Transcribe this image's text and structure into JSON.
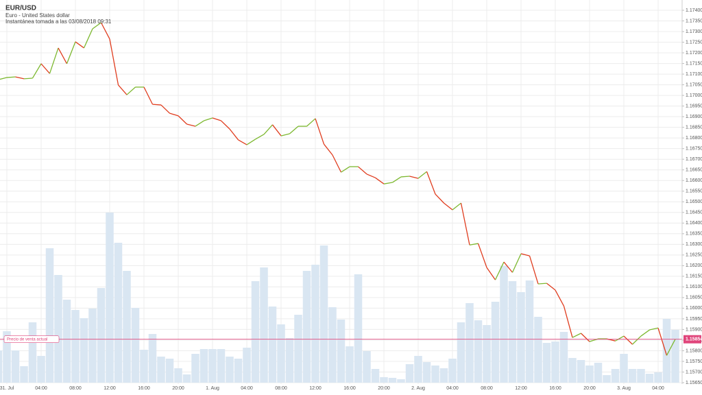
{
  "chart_data": {
    "type": "line",
    "title": "EUR/USD",
    "subtitle": "Euro - United States dollar",
    "snapshot": "Instantánea tomada a las 03/08/2018 09:31",
    "current_price_label": "Precio de venta actual",
    "current_price": 1.15854,
    "current_price_color": "#e0457b",
    "up_color": "#7cb82f",
    "down_color": "#e03c1e",
    "volume_color": "#d9e6f2",
    "grid": true,
    "x": [
      -1,
      0,
      1,
      2,
      3,
      4,
      5,
      6,
      7,
      8,
      9,
      10,
      11,
      12,
      13,
      14,
      15,
      16,
      17,
      18,
      19,
      20,
      21,
      22,
      23,
      24,
      25,
      26,
      27,
      28,
      29,
      30,
      31,
      32,
      33,
      34,
      35,
      36,
      37,
      38,
      39,
      40,
      41,
      42,
      43,
      44,
      45,
      46,
      47,
      48,
      49,
      50,
      51,
      52,
      53,
      54,
      55,
      56,
      57,
      58,
      59,
      60,
      61,
      62,
      63,
      64,
      65,
      66,
      67,
      68,
      69,
      70,
      71,
      72,
      73,
      74,
      75,
      76,
      77,
      78
    ],
    "xlim": [
      -0.8,
      78.8
    ],
    "xticks": [
      {
        "value": 0,
        "label": "31. Jul"
      },
      {
        "value": 4,
        "label": "04:00"
      },
      {
        "value": 8,
        "label": "08:00"
      },
      {
        "value": 12,
        "label": "12:00"
      },
      {
        "value": 16,
        "label": "16:00"
      },
      {
        "value": 20,
        "label": "20:00"
      },
      {
        "value": 24,
        "label": "1. Aug"
      },
      {
        "value": 28,
        "label": "04:00"
      },
      {
        "value": 32,
        "label": "08:00"
      },
      {
        "value": 36,
        "label": "12:00"
      },
      {
        "value": 40,
        "label": "16:00"
      },
      {
        "value": 44,
        "label": "20:00"
      },
      {
        "value": 48,
        "label": "2. Aug"
      },
      {
        "value": 52,
        "label": "04:00"
      },
      {
        "value": 56,
        "label": "08:00"
      },
      {
        "value": 60,
        "label": "12:00"
      },
      {
        "value": 64,
        "label": "16:00"
      },
      {
        "value": 68,
        "label": "20:00"
      },
      {
        "value": 72,
        "label": "3. Aug"
      },
      {
        "value": 76,
        "label": "04:00"
      }
    ],
    "ylim": [
      1.1565,
      1.174
    ],
    "yticks": [
      {
        "value": 1.174,
        "label": "1.17400"
      },
      {
        "value": 1.1735,
        "label": "1.17350"
      },
      {
        "value": 1.173,
        "label": "1.17300"
      },
      {
        "value": 1.1725,
        "label": "1.17250"
      },
      {
        "value": 1.172,
        "label": "1.17200"
      },
      {
        "value": 1.1715,
        "label": "1.17150"
      },
      {
        "value": 1.171,
        "label": "1.17100"
      },
      {
        "value": 1.1705,
        "label": "1.17050"
      },
      {
        "value": 1.17,
        "label": "1.17000"
      },
      {
        "value": 1.1695,
        "label": "1.16950"
      },
      {
        "value": 1.169,
        "label": "1.16900"
      },
      {
        "value": 1.1685,
        "label": "1.16850"
      },
      {
        "value": 1.168,
        "label": "1.16800"
      },
      {
        "value": 1.1675,
        "label": "1.16750"
      },
      {
        "value": 1.167,
        "label": "1.16700"
      },
      {
        "value": 1.1665,
        "label": "1.16650"
      },
      {
        "value": 1.166,
        "label": "1.16600"
      },
      {
        "value": 1.1655,
        "label": "1.16550"
      },
      {
        "value": 1.165,
        "label": "1.16500"
      },
      {
        "value": 1.1645,
        "label": "1.16450"
      },
      {
        "value": 1.164,
        "label": "1.16400"
      },
      {
        "value": 1.1635,
        "label": "1.16350"
      },
      {
        "value": 1.163,
        "label": "1.16300"
      },
      {
        "value": 1.1625,
        "label": "1.16250"
      },
      {
        "value": 1.162,
        "label": "1.16200"
      },
      {
        "value": 1.1615,
        "label": "1.16150"
      },
      {
        "value": 1.161,
        "label": "1.16100"
      },
      {
        "value": 1.1605,
        "label": "1.16050"
      },
      {
        "value": 1.16,
        "label": "1.16000"
      },
      {
        "value": 1.1595,
        "label": "1.15950"
      },
      {
        "value": 1.159,
        "label": "1.15900"
      },
      {
        "value": 1.1585,
        "label": "1.15850"
      },
      {
        "value": 1.158,
        "label": "1.15800"
      },
      {
        "value": 1.1575,
        "label": "1.15750"
      },
      {
        "value": 1.157,
        "label": "1.15700"
      },
      {
        "value": 1.1565,
        "label": "1.15650"
      }
    ],
    "y2lim": [
      0,
      543
    ],
    "series": [
      {
        "name": "EUR/USD",
        "values": [
          1.17074,
          1.17084,
          1.17087,
          1.17078,
          1.17081,
          1.17149,
          1.17103,
          1.17223,
          1.17149,
          1.17252,
          1.17223,
          1.17313,
          1.17342,
          1.17265,
          1.17049,
          1.17003,
          1.17039,
          1.17039,
          1.16958,
          1.16955,
          1.16916,
          1.16904,
          1.16865,
          1.16855,
          1.16881,
          1.16894,
          1.16881,
          1.16842,
          1.16791,
          1.16768,
          1.16794,
          1.16817,
          1.16862,
          1.1681,
          1.1682,
          1.16855,
          1.16855,
          1.16891,
          1.16771,
          1.1672,
          1.16639,
          1.16665,
          1.16665,
          1.1663,
          1.16613,
          1.16584,
          1.16591,
          1.16617,
          1.1662,
          1.1661,
          1.16642,
          1.16536,
          1.16494,
          1.16462,
          1.16494,
          1.16297,
          1.16304,
          1.16191,
          1.16133,
          1.16217,
          1.16168,
          1.16256,
          1.16246,
          1.16114,
          1.16117,
          1.16085,
          1.1601,
          1.15862,
          1.15882,
          1.15843,
          1.15856,
          1.15856,
          1.15846,
          1.15869,
          1.1583,
          1.15869,
          1.15898,
          1.15907,
          1.15778,
          1.15854
        ]
      },
      {
        "name": "Volume",
        "axis": "y2",
        "values": [
          47,
          75,
          47,
          24,
          88,
          39,
          196,
          157,
          121,
          106,
          94,
          108,
          138,
          248,
          204,
          163,
          109,
          48,
          71,
          38,
          35,
          21,
          12,
          42,
          49,
          49,
          49,
          38,
          35,
          51,
          148,
          168,
          111,
          85,
          65,
          99,
          163,
          172,
          200,
          110,
          92,
          53,
          158,
          46,
          20,
          8,
          7,
          5,
          27,
          39,
          30,
          25,
          21,
          35,
          88,
          116,
          91,
          84,
          118,
          170,
          148,
          132,
          149,
          96,
          58,
          60,
          74,
          36,
          33,
          25,
          29,
          11,
          20,
          42,
          20,
          20,
          13,
          15,
          93,
          77
        ]
      }
    ]
  }
}
